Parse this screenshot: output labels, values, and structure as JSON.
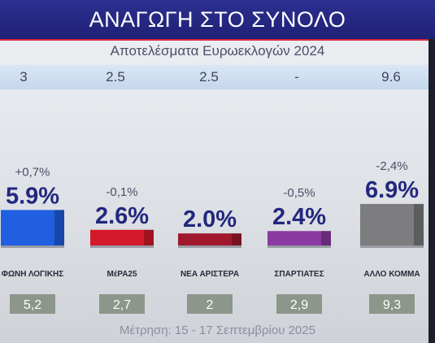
{
  "title": "ΑΝΑΓΩΓΗ ΣΤΟ ΣΥΝΟΛΟ",
  "subtitle": "Αποτελέσματα Ευρωεκλογών 2024",
  "footer": "Μέτρηση: 15 - 17 Σεπτεμβρίου 2025",
  "euro_results": [
    "3",
    "2.5",
    "2.5",
    "-",
    "9.6"
  ],
  "colors": {
    "title_bg": "#23267f",
    "accent_red": "#d7263d",
    "bar_blue": "#1f5fe0",
    "bar_red": "#d4192b",
    "bar_darkred": "#a0182c",
    "bar_purple": "#8a3aa0",
    "bar_grey": "#7d7d80"
  },
  "parties": [
    {
      "label": "ΦΩΝΗ ΛΟΓΙΚΗΣ",
      "logo": "phoni-logikis-logo"
    },
    {
      "label": "ΜέΡΑ25",
      "logo": "mera25-logo"
    },
    {
      "label": "ΝΕΑ ΑΡΙΣΤΕΡΑ",
      "logo": "nea-aristera-logo"
    },
    {
      "label": "ΣΠΑΡΤΙΑΤΕΣ",
      "logo": "spartiates-logo"
    },
    {
      "label": "ΑΛΛΟ ΚΟΜΜΑ",
      "logo": ""
    }
  ],
  "chart_data": {
    "type": "bar",
    "title": "ΑΝΑΓΩΓΗ ΣΤΟ ΣΥΝΟΛΟ",
    "categories": [
      "ΦΩΝΗ ΛΟΓΙΚΗΣ",
      "ΜέΡΑ25",
      "ΝΕΑ ΑΡΙΣΤΕΡΑ",
      "ΣΠΑΡΤΙΑΤΕΣ",
      "ΑΛΛΟ ΚΟΜΜΑ"
    ],
    "values": [
      5.9,
      2.6,
      2.0,
      2.4,
      6.9
    ],
    "value_labels": [
      "5.9%",
      "2.6%",
      "2.0%",
      "2.4%",
      "6.9%"
    ],
    "changes": [
      "+0,7%",
      "-0,1%",
      "",
      "-0,5%",
      "-2,4%"
    ],
    "previous_values": [
      "5,2",
      "2,7",
      "2",
      "2,9",
      "9,3"
    ],
    "euro_2024": [
      "3",
      "2.5",
      "2.5",
      "-",
      "9.6"
    ],
    "series_colors": [
      "#1f5fe0",
      "#d4192b",
      "#a0182c",
      "#8a3aa0",
      "#7d7d80"
    ],
    "xlabel": "",
    "ylabel": "",
    "ylim": [
      0,
      7
    ]
  }
}
